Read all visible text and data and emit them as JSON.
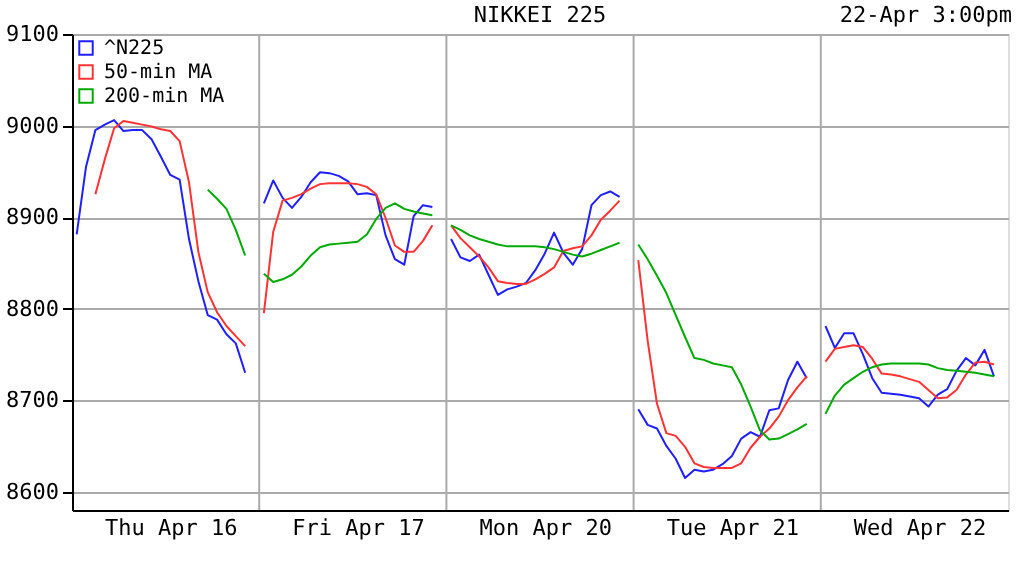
{
  "chart_data": {
    "type": "line",
    "title": "NIKKEI 225",
    "subtitle": "22-Apr 3:00pm",
    "categories": [
      null,
      null,
      null,
      null,
      null,
      null,
      null,
      null,
      null,
      null,
      "Thu Apr 16",
      null,
      null,
      null,
      null,
      null,
      null,
      null,
      null,
      null,
      null,
      null,
      null,
      null,
      null,
      null,
      null,
      null,
      null,
      null,
      "Fri Apr 17",
      null,
      null,
      null,
      null,
      null,
      null,
      null,
      null,
      null,
      null,
      null,
      null,
      null,
      null,
      null,
      null,
      null,
      null,
      null,
      "Mon Apr 20",
      null,
      null,
      null,
      null,
      null,
      null,
      null,
      null,
      null,
      null,
      null,
      null,
      null,
      null,
      null,
      null,
      null,
      null,
      null,
      "Tue Apr 21",
      null,
      null,
      null,
      null,
      null,
      null,
      null,
      null,
      null,
      null,
      null,
      null,
      null,
      null,
      null,
      null,
      null,
      null,
      null,
      "Wed Apr 22",
      null,
      null,
      null,
      null,
      null,
      null,
      null,
      null,
      null
    ],
    "ylim": [
      8580,
      9100
    ],
    "yticks": [
      8600,
      8700,
      8800,
      8900,
      9000,
      9100
    ],
    "grid": true,
    "legend": "top left",
    "line_style": "solid",
    "marker": "none",
    "series": [
      {
        "name": "^N225",
        "color": "#1f1fff",
        "values": [
          8881,
          8955,
          8995,
          9001,
          9006,
          8994,
          8995,
          8995,
          8985,
          8966,
          8946,
          8941,
          8876,
          8830,
          8793,
          8788,
          8772,
          8762,
          8730,
          null,
          8915,
          8940,
          8921,
          8910,
          8922,
          8938,
          8949,
          8948,
          8945,
          8939,
          8925,
          8926,
          8924,
          8880,
          8854,
          8848,
          8901,
          8913,
          8911,
          null,
          8876,
          8856,
          8852,
          8859,
          8837,
          8815,
          8821,
          8824,
          8828,
          8842,
          8860,
          8883,
          8861,
          8848,
          8865,
          8913,
          8924,
          8928,
          8922,
          null,
          8690,
          8673,
          8669,
          8650,
          8636,
          8615,
          8624,
          8622,
          8624,
          8630,
          8639,
          8658,
          8665,
          8660,
          8689,
          8691,
          8722,
          8742,
          8724,
          null,
          8781,
          8757,
          8773,
          8773,
          8750,
          8724,
          8708,
          8707,
          8706,
          8704,
          8702,
          8693,
          8706,
          8712,
          8732,
          8746,
          8738,
          8755,
          8726,
          null
        ]
      },
      {
        "name": "50-min MA",
        "color": "#ff3333",
        "values": [
          null,
          null,
          8925,
          8963,
          8997,
          9005,
          9003,
          9001,
          8999,
          8996,
          8994,
          8983,
          8938,
          8862,
          8818,
          8796,
          8781,
          8770,
          8759,
          null,
          8795,
          8884,
          8918,
          8921,
          8925,
          8931,
          8936,
          8937,
          8937,
          8937,
          8936,
          8933,
          8925,
          8899,
          8869,
          8862,
          8862,
          8874,
          8891,
          null,
          8891,
          8877,
          8867,
          8857,
          8845,
          8830,
          8828,
          8827,
          8827,
          8832,
          8838,
          8845,
          8863,
          8866,
          8868,
          8880,
          8897,
          8907,
          8918,
          null,
          8853,
          8765,
          8696,
          8664,
          8661,
          8649,
          8631,
          8627,
          8626,
          8626,
          8626,
          8631,
          8648,
          8660,
          8669,
          8682,
          8700,
          8714,
          8726,
          null,
          8742,
          8756,
          8758,
          8760,
          8758,
          8745,
          8729,
          8728,
          8726,
          8723,
          8720,
          8711,
          8702,
          8703,
          8711,
          8728,
          8741,
          8742,
          8739,
          null
        ]
      },
      {
        "name": "200-min MA",
        "color": "#00aa00",
        "values": [
          null,
          null,
          null,
          null,
          null,
          null,
          null,
          null,
          null,
          null,
          null,
          null,
          null,
          null,
          8930,
          8920,
          8909,
          8886,
          8858,
          null,
          8838,
          8829,
          8832,
          8837,
          8846,
          8858,
          8867,
          8870,
          8871,
          8872,
          8873,
          8881,
          8898,
          8910,
          8915,
          8909,
          8906,
          8904,
          8902,
          null,
          8891,
          8886,
          8880,
          8876,
          8873,
          8870,
          8868,
          8868,
          8868,
          8868,
          8867,
          8865,
          8862,
          8859,
          8857,
          8860,
          8864,
          8868,
          8872,
          null,
          8870,
          8854,
          8836,
          8817,
          8793,
          8769,
          8746,
          8744,
          8740,
          8738,
          8736,
          8717,
          8693,
          8667,
          8657,
          8658,
          8663,
          8668,
          8674,
          null,
          8685,
          8705,
          8717,
          8724,
          8731,
          8736,
          8739,
          8740,
          8740,
          8740,
          8740,
          8739,
          8735,
          8733,
          8732,
          8731,
          8730,
          8728,
          8726,
          null
        ]
      }
    ]
  }
}
